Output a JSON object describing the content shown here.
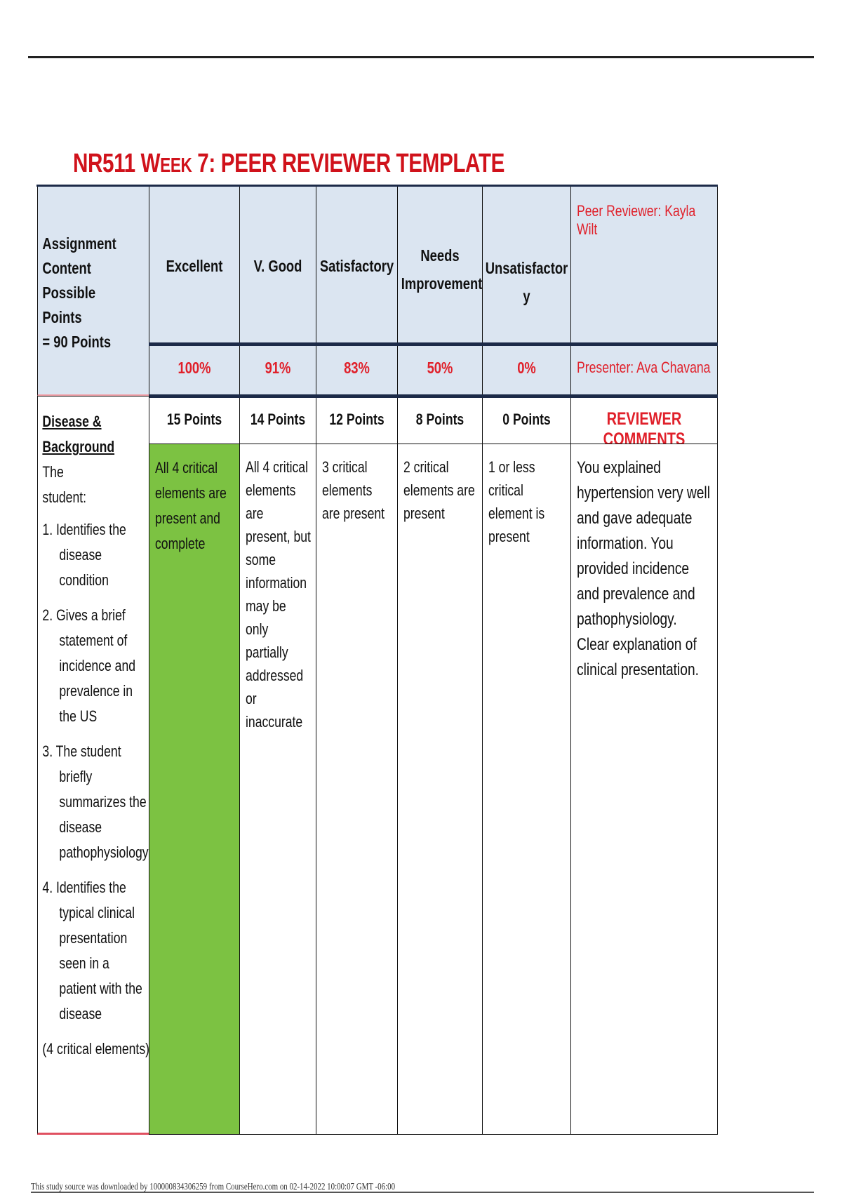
{
  "title": {
    "prefix": "NR511 W",
    "small_caps": "EEK",
    "suffix": " 7: PEER REVIEWER TEMPLATE"
  },
  "table": {
    "corner_header": [
      "Assignment",
      "Content Possible",
      "Points",
      "= 90 Points"
    ],
    "levels": [
      {
        "label": "Excellent",
        "percent": "100%",
        "points": "15 Points"
      },
      {
        "label": "V. Good",
        "percent": "91%",
        "points": "14 Points"
      },
      {
        "label": "Satisfactory",
        "percent": "83%",
        "points": "12 Points"
      },
      {
        "label": "Needs Improvement",
        "percent": "50%",
        "points": "8 Points"
      },
      {
        "label": "Unsatisfactory",
        "percent": "0%",
        "points": "0 Points"
      }
    ],
    "peer_reviewer": "Peer Reviewer: Kayla Wilt",
    "presenter": "Presenter: Ava Chavana",
    "comments_header": "REVIEWER COMMENTS",
    "criterion": {
      "title": "Disease & Background",
      "intro": "The student:",
      "items": [
        "1.  Identifies the disease condition",
        "2.  Gives a brief statement of incidence and prevalence in the US",
        "3. The student briefly summarizes the disease pathophysiology",
        "4. Identifies the typical clinical presentation seen in a patient with the disease"
      ],
      "note": "(4 critical elements)"
    },
    "descriptors": [
      "All 4 critical elements are present and complete",
      "All 4 critical elements are present, but some information may be only partially addressed or inaccurate",
      "3 critical elements are present",
      "2 critical elements are present",
      "1 or less critical element is present"
    ],
    "selected_level": "Excellent",
    "selected_color": "#7cc242",
    "comment": "You explained hypertension very well and gave adequate information. You provided incidence and prevalence and pathophysiology. Clear explanation of clinical presentation."
  },
  "footer": "This study source was downloaded by 100000834306259 from CourseHero.com on 02-14-2022 10:00:07 GMT -06:00"
}
